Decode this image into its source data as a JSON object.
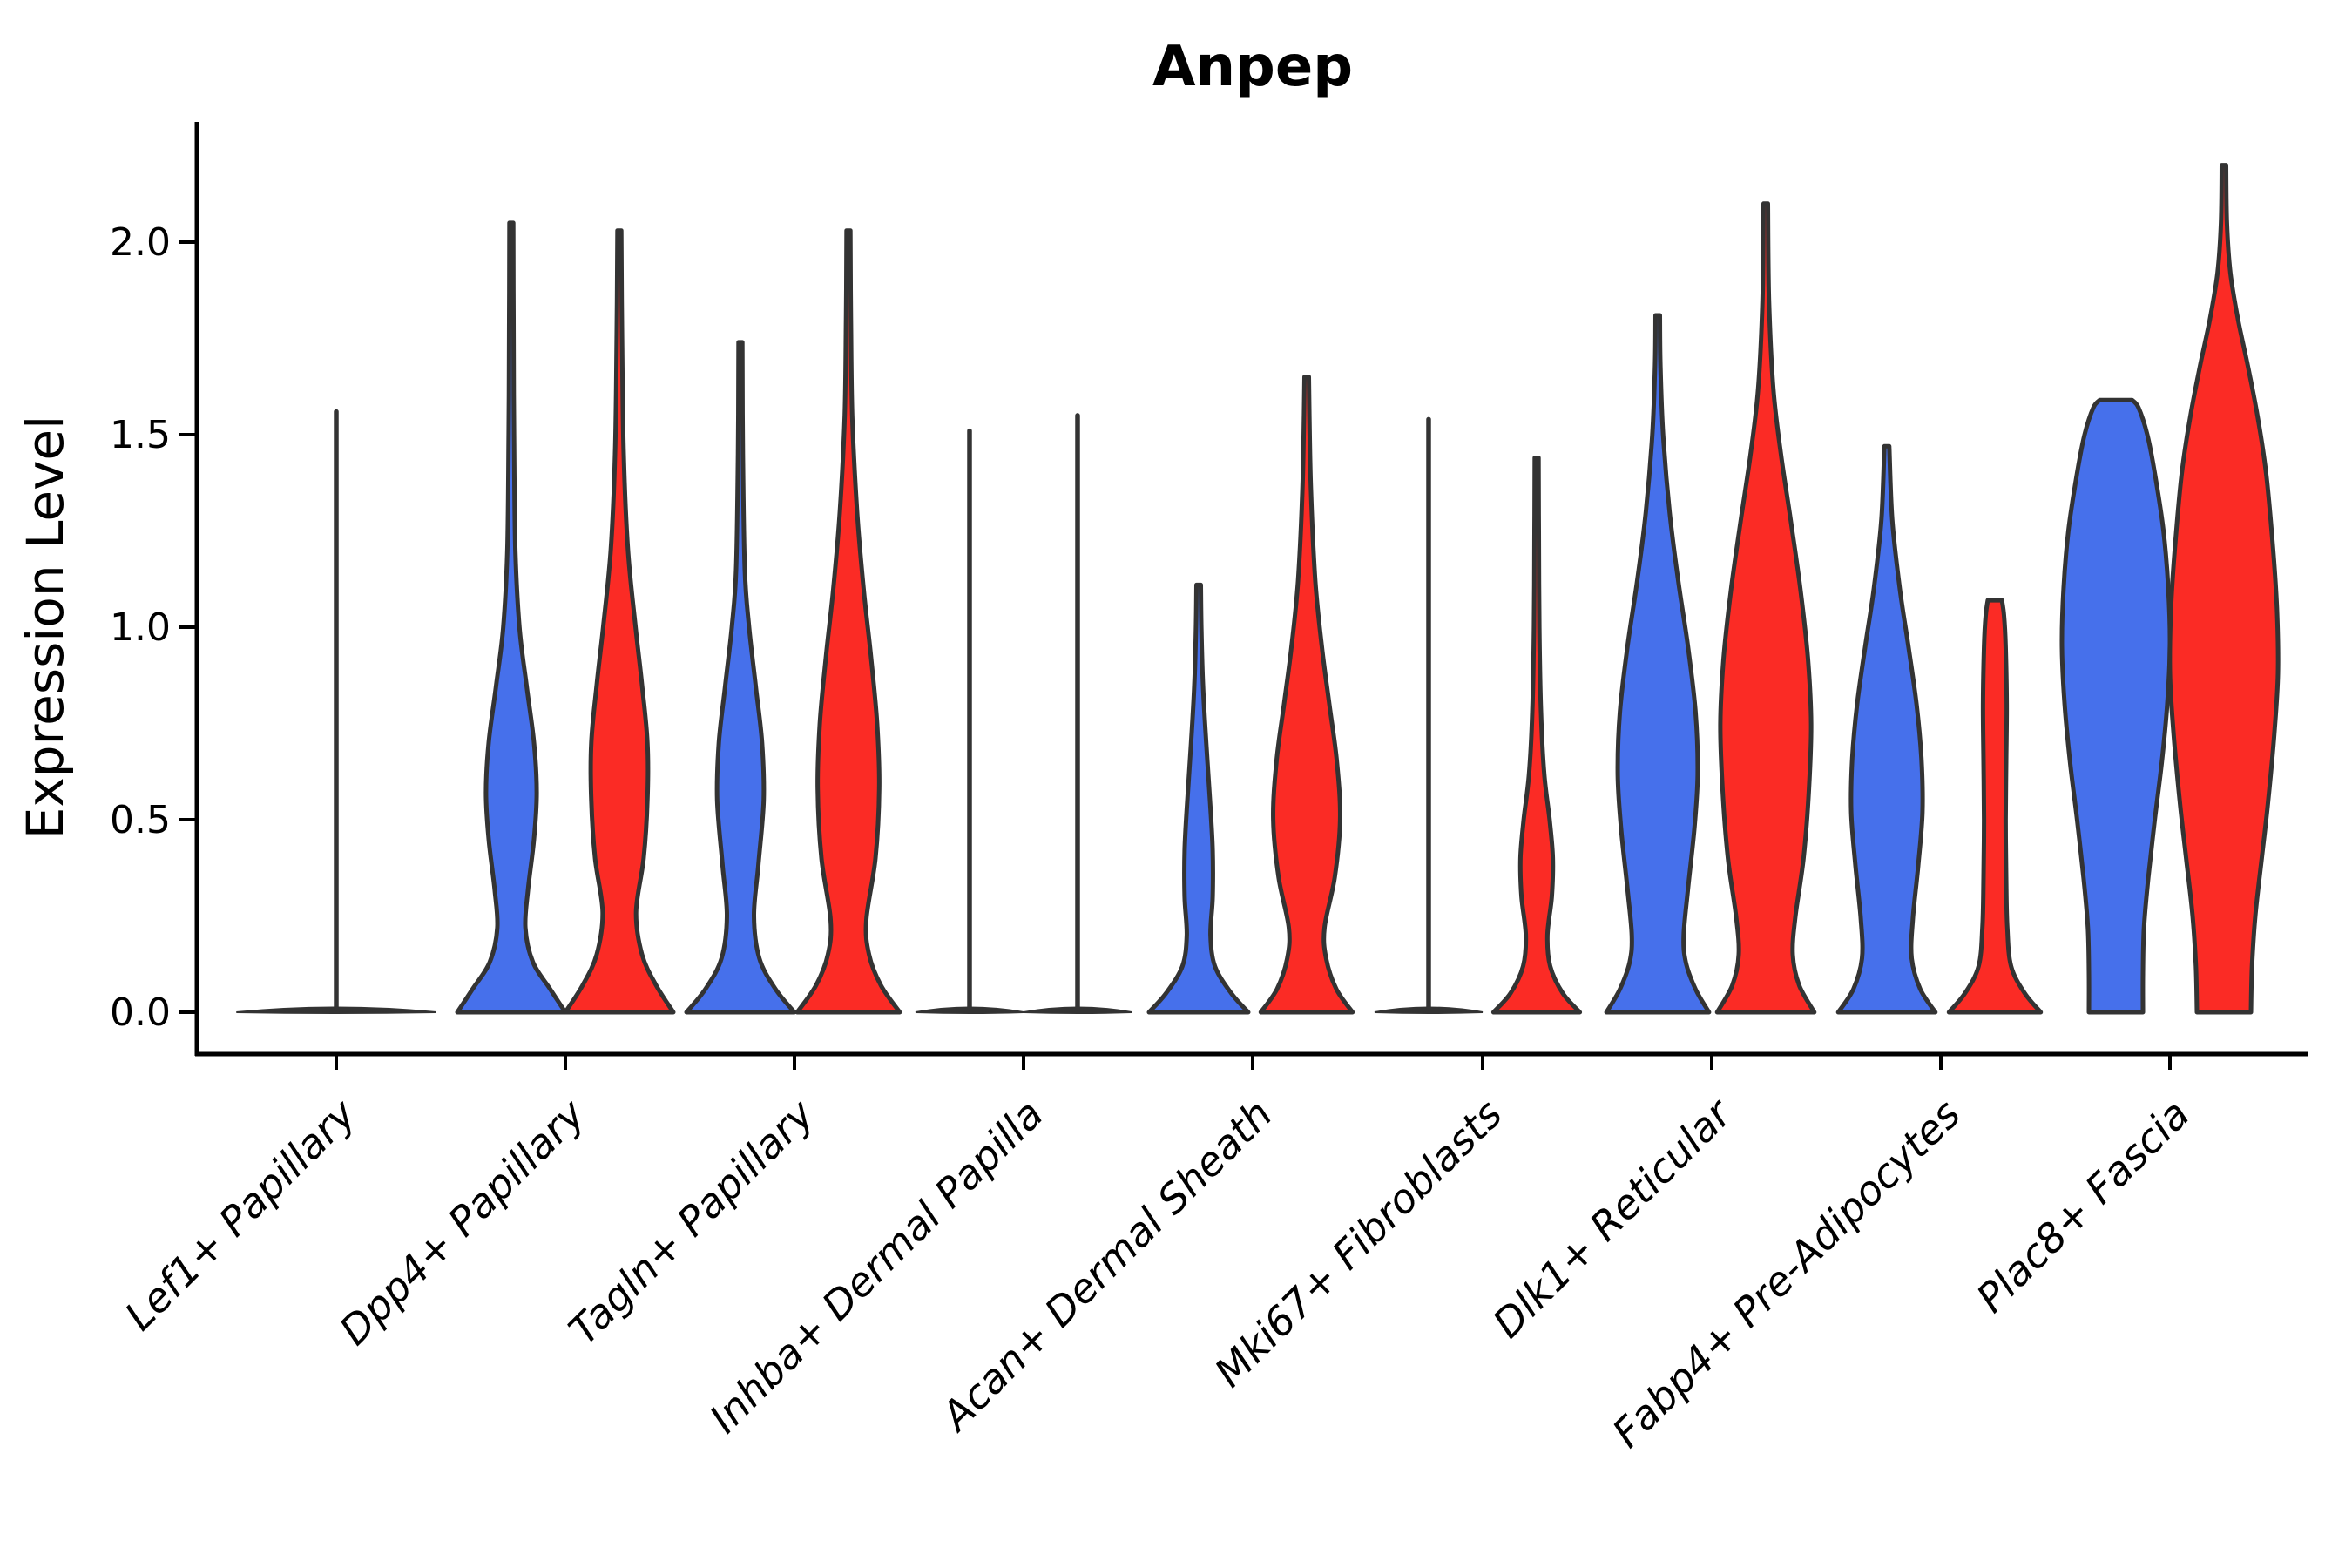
{
  "chart_data": {
    "type": "violin",
    "title": "Anpep",
    "xlabel": "",
    "ylabel": "Expression Level",
    "yticks": [
      0.0,
      0.5,
      1.0,
      1.5,
      2.0
    ],
    "ytick_labels": [
      "0.0",
      "0.5",
      "1.0",
      "1.5",
      "2.0"
    ],
    "ylim": [
      -0.05,
      2.3
    ],
    "grid": false,
    "legend": "none",
    "background": "#ffffff",
    "categories": [
      "Lef1+ Papillary",
      "Dpp4+ Papillary",
      "Tagln+ Papillary",
      "Inhba+ Dermal Papilla",
      "Acan+ Dermal Sheath",
      "Mki67+ Fibroblasts",
      "Dlk1+ Reticular",
      "Fabp4+ Pre-Adipocytes",
      "Plac8+ Fascia"
    ],
    "colors": {
      "blue": "#4670EB",
      "red": "#FB2B25",
      "outline": "#333333",
      "axis": "#000000"
    },
    "series": [
      {
        "category": "Lef1+ Papillary",
        "group": "none",
        "side": "center",
        "shape": "flat_spike",
        "max_expression": 1.56,
        "base_halfwidth": 1.85
      },
      {
        "category": "Dpp4+ Papillary",
        "group": "blue",
        "side": "left",
        "shape": "violin",
        "max_expression": 2.05,
        "profile": [
          [
            0,
            1.0
          ],
          [
            0.06,
            0.72
          ],
          [
            0.13,
            0.4
          ],
          [
            0.22,
            0.26
          ],
          [
            0.32,
            0.31
          ],
          [
            0.45,
            0.42
          ],
          [
            0.57,
            0.47
          ],
          [
            0.7,
            0.42
          ],
          [
            0.85,
            0.28
          ],
          [
            1.0,
            0.15
          ],
          [
            1.2,
            0.075
          ],
          [
            1.5,
            0.05
          ],
          [
            1.8,
            0.04
          ],
          [
            2.05,
            0.035
          ]
        ]
      },
      {
        "category": "Dpp4+ Papillary",
        "group": "red",
        "side": "right",
        "shape": "violin",
        "max_expression": 2.03,
        "profile": [
          [
            0,
            1.0
          ],
          [
            0.07,
            0.68
          ],
          [
            0.15,
            0.42
          ],
          [
            0.26,
            0.31
          ],
          [
            0.4,
            0.45
          ],
          [
            0.55,
            0.52
          ],
          [
            0.7,
            0.52
          ],
          [
            0.85,
            0.42
          ],
          [
            1.0,
            0.3
          ],
          [
            1.2,
            0.16
          ],
          [
            1.45,
            0.08
          ],
          [
            1.75,
            0.05
          ],
          [
            2.03,
            0.035
          ]
        ]
      },
      {
        "category": "Tagln+ Papillary",
        "group": "blue",
        "side": "left",
        "shape": "violin",
        "max_expression": 1.74,
        "profile": [
          [
            0,
            1.0
          ],
          [
            0.06,
            0.65
          ],
          [
            0.14,
            0.35
          ],
          [
            0.25,
            0.25
          ],
          [
            0.38,
            0.33
          ],
          [
            0.55,
            0.43
          ],
          [
            0.7,
            0.4
          ],
          [
            0.85,
            0.28
          ],
          [
            1.0,
            0.16
          ],
          [
            1.15,
            0.08
          ],
          [
            1.45,
            0.045
          ],
          [
            1.74,
            0.035
          ]
        ]
      },
      {
        "category": "Tagln+ Papillary",
        "group": "red",
        "side": "right",
        "shape": "violin",
        "max_expression": 2.03,
        "profile": [
          [
            0,
            0.95
          ],
          [
            0.07,
            0.6
          ],
          [
            0.15,
            0.38
          ],
          [
            0.24,
            0.33
          ],
          [
            0.4,
            0.5
          ],
          [
            0.58,
            0.57
          ],
          [
            0.75,
            0.53
          ],
          [
            0.92,
            0.42
          ],
          [
            1.1,
            0.28
          ],
          [
            1.3,
            0.16
          ],
          [
            1.55,
            0.07
          ],
          [
            1.8,
            0.045
          ],
          [
            2.03,
            0.035
          ]
        ]
      },
      {
        "category": "Inhba+ Dermal Papilla",
        "group": "blue",
        "side": "left",
        "shape": "flat_spike",
        "max_expression": 1.51,
        "base_halfwidth": 1.0
      },
      {
        "category": "Inhba+ Dermal Papilla",
        "group": "red",
        "side": "right",
        "shape": "flat_spike",
        "max_expression": 1.55,
        "base_halfwidth": 1.0
      },
      {
        "category": "Acan+ Dermal Sheath",
        "group": "blue",
        "side": "left",
        "shape": "violin",
        "max_expression": 1.11,
        "profile": [
          [
            0,
            0.92
          ],
          [
            0.05,
            0.6
          ],
          [
            0.12,
            0.3
          ],
          [
            0.2,
            0.22
          ],
          [
            0.3,
            0.26
          ],
          [
            0.42,
            0.26
          ],
          [
            0.55,
            0.21
          ],
          [
            0.7,
            0.14
          ],
          [
            0.85,
            0.08
          ],
          [
            1.0,
            0.05
          ],
          [
            1.11,
            0.04
          ]
        ]
      },
      {
        "category": "Acan+ Dermal Sheath",
        "group": "red",
        "side": "right",
        "shape": "violin",
        "max_expression": 1.65,
        "profile": [
          [
            0,
            0.85
          ],
          [
            0.06,
            0.55
          ],
          [
            0.14,
            0.36
          ],
          [
            0.22,
            0.33
          ],
          [
            0.35,
            0.52
          ],
          [
            0.5,
            0.62
          ],
          [
            0.65,
            0.56
          ],
          [
            0.8,
            0.42
          ],
          [
            0.95,
            0.28
          ],
          [
            1.12,
            0.16
          ],
          [
            1.35,
            0.08
          ],
          [
            1.55,
            0.05
          ],
          [
            1.65,
            0.04
          ]
        ]
      },
      {
        "category": "Mki67+ Fibroblasts",
        "group": "blue",
        "side": "left",
        "shape": "flat_spike",
        "max_expression": 1.54,
        "base_halfwidth": 1.0
      },
      {
        "category": "Mki67+ Fibroblasts",
        "group": "red",
        "side": "right",
        "shape": "violin",
        "max_expression": 1.44,
        "profile": [
          [
            0,
            0.8
          ],
          [
            0.05,
            0.48
          ],
          [
            0.12,
            0.25
          ],
          [
            0.2,
            0.2
          ],
          [
            0.3,
            0.28
          ],
          [
            0.4,
            0.3
          ],
          [
            0.5,
            0.24
          ],
          [
            0.62,
            0.14
          ],
          [
            0.78,
            0.08
          ],
          [
            1.0,
            0.05
          ],
          [
            1.25,
            0.04
          ],
          [
            1.44,
            0.035
          ]
        ]
      },
      {
        "category": "Dlk1+ Reticular",
        "group": "blue",
        "side": "left",
        "shape": "violin",
        "max_expression": 1.81,
        "profile": [
          [
            0,
            0.95
          ],
          [
            0.06,
            0.7
          ],
          [
            0.13,
            0.52
          ],
          [
            0.2,
            0.48
          ],
          [
            0.32,
            0.56
          ],
          [
            0.48,
            0.68
          ],
          [
            0.62,
            0.74
          ],
          [
            0.78,
            0.7
          ],
          [
            0.95,
            0.56
          ],
          [
            1.12,
            0.38
          ],
          [
            1.3,
            0.22
          ],
          [
            1.5,
            0.1
          ],
          [
            1.68,
            0.05
          ],
          [
            1.81,
            0.04
          ]
        ]
      },
      {
        "category": "Dlk1+ Reticular",
        "group": "red",
        "side": "right",
        "shape": "violin",
        "max_expression": 2.1,
        "profile": [
          [
            0,
            0.9
          ],
          [
            0.07,
            0.62
          ],
          [
            0.15,
            0.5
          ],
          [
            0.25,
            0.55
          ],
          [
            0.4,
            0.7
          ],
          [
            0.58,
            0.8
          ],
          [
            0.75,
            0.84
          ],
          [
            0.92,
            0.78
          ],
          [
            1.1,
            0.64
          ],
          [
            1.28,
            0.46
          ],
          [
            1.45,
            0.28
          ],
          [
            1.62,
            0.14
          ],
          [
            1.85,
            0.06
          ],
          [
            2.1,
            0.04
          ]
        ]
      },
      {
        "category": "Fabp4+ Pre-Adipocytes",
        "group": "blue",
        "side": "left",
        "shape": "violin",
        "max_expression": 1.47,
        "profile": [
          [
            0,
            0.9
          ],
          [
            0.06,
            0.62
          ],
          [
            0.14,
            0.46
          ],
          [
            0.24,
            0.48
          ],
          [
            0.38,
            0.58
          ],
          [
            0.52,
            0.66
          ],
          [
            0.66,
            0.64
          ],
          [
            0.8,
            0.55
          ],
          [
            0.95,
            0.4
          ],
          [
            1.1,
            0.24
          ],
          [
            1.28,
            0.1
          ],
          [
            1.47,
            0.045
          ]
        ]
      },
      {
        "category": "Fabp4+ Pre-Adipocytes",
        "group": "red",
        "side": "right",
        "shape": "violin",
        "max_expression": 1.07,
        "profile": [
          [
            0,
            0.85
          ],
          [
            0.05,
            0.55
          ],
          [
            0.12,
            0.3
          ],
          [
            0.22,
            0.23
          ],
          [
            0.35,
            0.21
          ],
          [
            0.5,
            0.2
          ],
          [
            0.65,
            0.21
          ],
          [
            0.8,
            0.22
          ],
          [
            0.95,
            0.2
          ],
          [
            1.03,
            0.17
          ],
          [
            1.07,
            0.13
          ]
        ]
      },
      {
        "category": "Plac8+ Fascia",
        "group": "blue",
        "side": "left",
        "shape": "violin",
        "max_expression": 1.59,
        "profile": [
          [
            0,
            0.5
          ],
          [
            0.1,
            0.5
          ],
          [
            0.22,
            0.52
          ],
          [
            0.35,
            0.6
          ],
          [
            0.5,
            0.72
          ],
          [
            0.65,
            0.85
          ],
          [
            0.8,
            0.95
          ],
          [
            0.95,
            1.0
          ],
          [
            1.1,
            0.97
          ],
          [
            1.25,
            0.88
          ],
          [
            1.4,
            0.72
          ],
          [
            1.5,
            0.58
          ],
          [
            1.57,
            0.42
          ],
          [
            1.59,
            0.3
          ]
        ]
      },
      {
        "category": "Plac8+ Fascia",
        "group": "red",
        "side": "right",
        "shape": "violin",
        "max_expression": 2.2,
        "profile": [
          [
            0,
            0.5
          ],
          [
            0.12,
            0.52
          ],
          [
            0.25,
            0.58
          ],
          [
            0.4,
            0.7
          ],
          [
            0.55,
            0.82
          ],
          [
            0.72,
            0.93
          ],
          [
            0.88,
            1.0
          ],
          [
            1.05,
            0.98
          ],
          [
            1.22,
            0.9
          ],
          [
            1.4,
            0.78
          ],
          [
            1.55,
            0.62
          ],
          [
            1.68,
            0.44
          ],
          [
            1.8,
            0.26
          ],
          [
            1.92,
            0.12
          ],
          [
            2.05,
            0.055
          ],
          [
            2.2,
            0.04
          ]
        ]
      }
    ]
  }
}
